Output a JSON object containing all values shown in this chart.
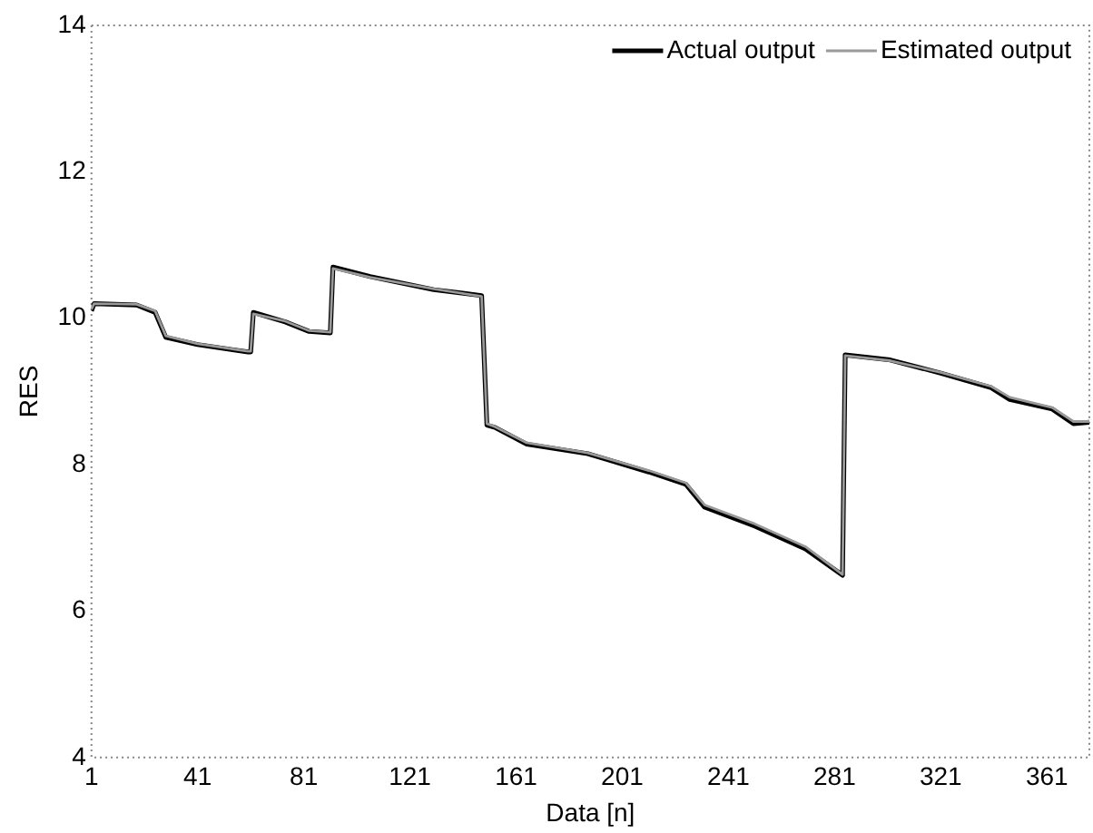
{
  "chart_data": {
    "type": "line",
    "xlabel": "Data [n]",
    "ylabel": "RES",
    "xlim": [
      1,
      377
    ],
    "ylim": [
      4,
      14
    ],
    "xticks": [
      1,
      41,
      81,
      121,
      161,
      201,
      241,
      281,
      321,
      361
    ],
    "yticks": [
      4,
      6,
      8,
      10,
      12,
      14
    ],
    "grid": false,
    "legend": "top right",
    "marker": "none",
    "line_style": "solid",
    "x": [
      1,
      2,
      18,
      25,
      29,
      41,
      60,
      61,
      62,
      74,
      83,
      91,
      92,
      106,
      130,
      148,
      150,
      153,
      165,
      188,
      211,
      225,
      232,
      251,
      270,
      284,
      285,
      302,
      321,
      340,
      347,
      363,
      371,
      377
    ],
    "series": [
      {
        "name": "Actual output",
        "color": "#000000",
        "values": [
          10.1,
          10.2,
          10.18,
          10.08,
          9.74,
          9.64,
          9.54,
          9.54,
          10.08,
          9.95,
          9.82,
          9.8,
          10.7,
          10.57,
          10.39,
          10.31,
          8.54,
          8.51,
          8.28,
          8.15,
          7.9,
          7.73,
          7.42,
          7.16,
          6.85,
          6.49,
          9.5,
          9.43,
          9.25,
          9.05,
          8.89,
          8.76,
          8.56,
          8.58
        ]
      },
      {
        "name": "Estimated output",
        "color": "#999999",
        "values": [
          10.12,
          10.2,
          10.19,
          10.1,
          9.76,
          9.65,
          9.55,
          9.55,
          10.06,
          9.96,
          9.83,
          9.81,
          10.68,
          10.56,
          10.4,
          10.3,
          8.56,
          8.52,
          8.3,
          8.16,
          7.92,
          7.75,
          7.45,
          7.19,
          6.88,
          6.5,
          9.49,
          9.42,
          9.26,
          9.07,
          8.92,
          8.78,
          8.59,
          8.59
        ]
      }
    ]
  }
}
